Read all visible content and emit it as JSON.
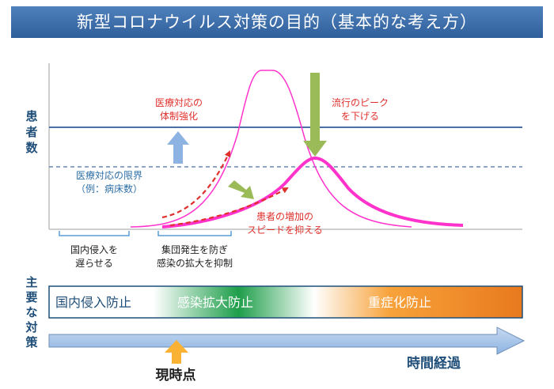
{
  "title": "新型コロナウイルス対策の目的（基本的な考え方）",
  "axis": {
    "y_label": "患者数",
    "side_label": "主要な対策",
    "time_label": "時間経過"
  },
  "annotations": {
    "capacity_up": [
      "医療対応の",
      "体制強化"
    ],
    "peak_down": [
      "流行のピーク",
      "を下げる"
    ],
    "capacity_limit": [
      "医療対応の限界",
      "（例：病床数）"
    ],
    "slow_growth": [
      "患者の増加の",
      "スピードを抑える"
    ],
    "border_delay": [
      "国内侵入を",
      "遅らせる"
    ],
    "cluster_prevent": [
      "集団発生を防ぎ",
      "感染の拡大を抑制"
    ],
    "now": "現時点"
  },
  "measures": [
    {
      "label": "国内侵入防止",
      "color": "#1f4e79"
    },
    {
      "label": "感染拡大防止",
      "color": "#ffffff"
    },
    {
      "label": "重症化防止",
      "color": "#ffffff"
    }
  ],
  "colors": {
    "curve": "#ff33cc",
    "capacity_line": "#4a6fa5",
    "annotation_red": "#e0302c",
    "annotation_blue": "#2e6fa7",
    "arrow_green": "#9bbb59",
    "arrow_blue": "#8db3e2",
    "arrow_orange": "#f9b233"
  }
}
